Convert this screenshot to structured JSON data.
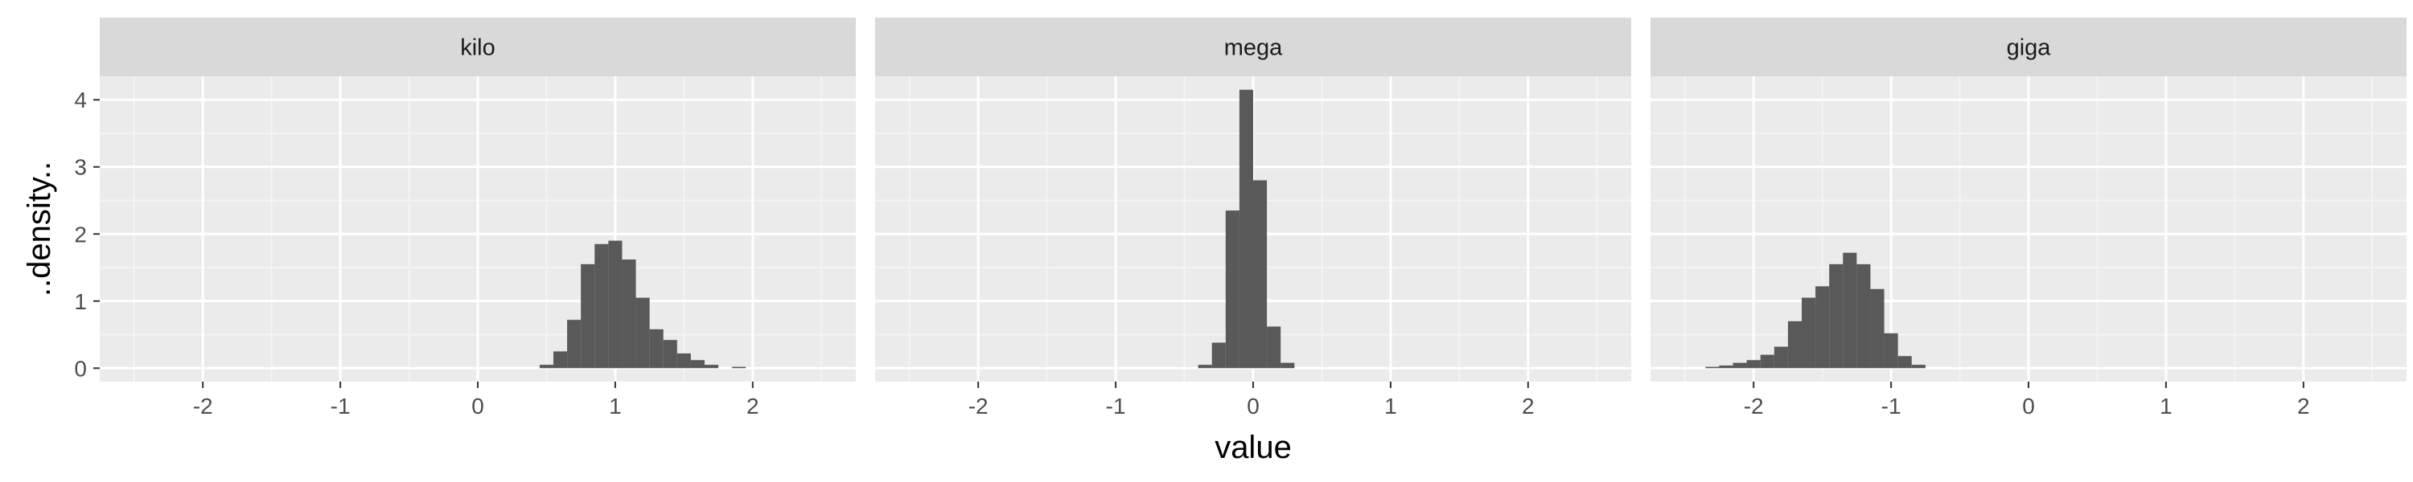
{
  "chart_data": {
    "type": "histogram",
    "layout": "facet_wrap",
    "xlabel": "value",
    "ylabel": "..density..",
    "xlim": [
      -2.75,
      2.75
    ],
    "ylim": [
      -0.2,
      4.35
    ],
    "x_ticks": [
      -2,
      -1,
      0,
      1,
      2
    ],
    "x_tick_labels": [
      "-2",
      "-1",
      "0",
      "1",
      "2"
    ],
    "y_ticks": [
      0,
      1,
      2,
      3,
      4
    ],
    "y_tick_labels": [
      "0",
      "1",
      "2",
      "3",
      "4"
    ],
    "bin_width": 0.1,
    "grid": true,
    "colors": {
      "panel_background": "#ebebeb",
      "strip_background": "#d9d9d9",
      "grid_major": "#ffffff",
      "grid_minor": "#f4f4f4",
      "bar_fill": "#595959"
    },
    "facets": [
      {
        "label": "kilo",
        "bins": [
          {
            "x": 0.5,
            "density": 0.05
          },
          {
            "x": 0.6,
            "density": 0.25
          },
          {
            "x": 0.7,
            "density": 0.72
          },
          {
            "x": 0.8,
            "density": 1.55
          },
          {
            "x": 0.9,
            "density": 1.85
          },
          {
            "x": 1.0,
            "density": 1.9
          },
          {
            "x": 1.1,
            "density": 1.62
          },
          {
            "x": 1.2,
            "density": 1.05
          },
          {
            "x": 1.3,
            "density": 0.58
          },
          {
            "x": 1.4,
            "density": 0.42
          },
          {
            "x": 1.5,
            "density": 0.22
          },
          {
            "x": 1.6,
            "density": 0.12
          },
          {
            "x": 1.7,
            "density": 0.05
          },
          {
            "x": 1.9,
            "density": 0.02
          }
        ]
      },
      {
        "label": "mega",
        "bins": [
          {
            "x": -0.35,
            "density": 0.05
          },
          {
            "x": -0.25,
            "density": 0.38
          },
          {
            "x": -0.15,
            "density": 2.35
          },
          {
            "x": -0.05,
            "density": 4.15
          },
          {
            "x": 0.05,
            "density": 2.8
          },
          {
            "x": 0.15,
            "density": 0.62
          },
          {
            "x": 0.25,
            "density": 0.08
          }
        ]
      },
      {
        "label": "giga",
        "bins": [
          {
            "x": -2.3,
            "density": 0.02
          },
          {
            "x": -2.2,
            "density": 0.04
          },
          {
            "x": -2.1,
            "density": 0.08
          },
          {
            "x": -2.0,
            "density": 0.12
          },
          {
            "x": -1.9,
            "density": 0.2
          },
          {
            "x": -1.8,
            "density": 0.32
          },
          {
            "x": -1.7,
            "density": 0.7
          },
          {
            "x": -1.6,
            "density": 1.05
          },
          {
            "x": -1.5,
            "density": 1.22
          },
          {
            "x": -1.4,
            "density": 1.55
          },
          {
            "x": -1.3,
            "density": 1.72
          },
          {
            "x": -1.2,
            "density": 1.55
          },
          {
            "x": -1.1,
            "density": 1.18
          },
          {
            "x": -1.0,
            "density": 0.52
          },
          {
            "x": -0.9,
            "density": 0.18
          },
          {
            "x": -0.8,
            "density": 0.05
          }
        ]
      }
    ]
  }
}
